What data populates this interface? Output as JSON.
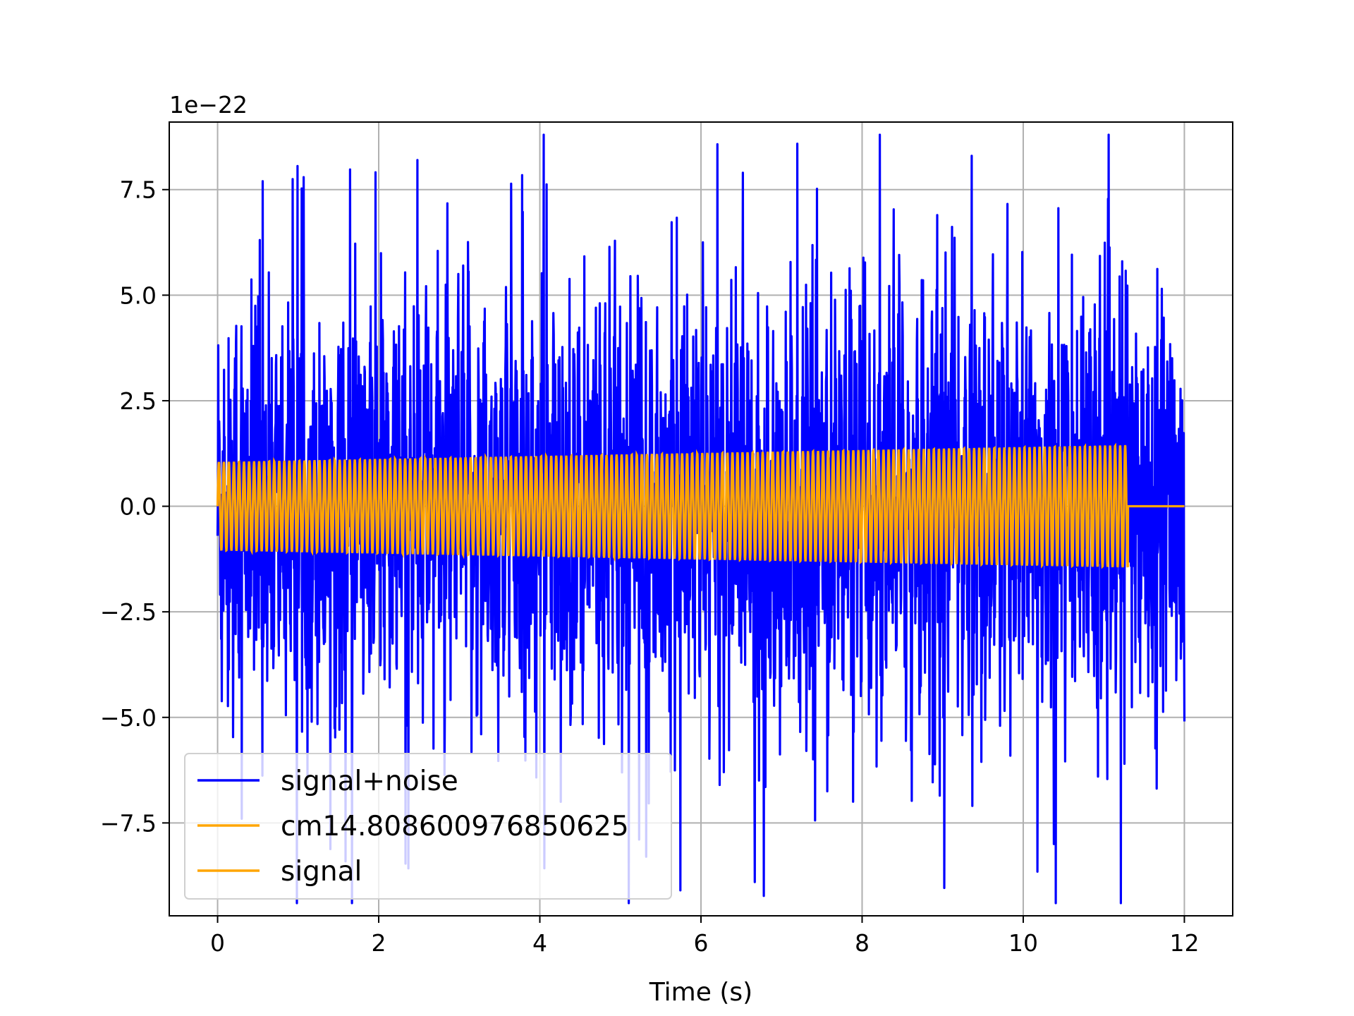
{
  "chart_data": {
    "type": "line",
    "title": "",
    "xlabel": "Time (s)",
    "ylabel": "",
    "y_scale_note": "1e−22",
    "xlim": [
      -0.6,
      12.6
    ],
    "ylim": [
      -9.7,
      9.1
    ],
    "x_ticks": [
      0,
      2,
      4,
      6,
      8,
      10,
      12
    ],
    "x_tick_labels": [
      "0",
      "2",
      "4",
      "6",
      "8",
      "10",
      "12"
    ],
    "y_ticks": [
      -7.5,
      -5.0,
      -2.5,
      0.0,
      2.5,
      5.0,
      7.5
    ],
    "y_tick_labels": [
      "−7.5",
      "−5.0",
      "−2.5",
      "0.0",
      "2.5",
      "5.0",
      "7.5"
    ],
    "grid": true,
    "legend_position": "lower-left",
    "series": [
      {
        "name": "signal+noise",
        "color": "#0000ff",
        "x_range": [
          0,
          12
        ],
        "peaks": [
          {
            "x": 0.56,
            "y": 7.7
          },
          {
            "x": 2.48,
            "y": 8.2
          },
          {
            "x": 6.52,
            "y": 7.9
          },
          {
            "x": 9.36,
            "y": 8.3
          },
          {
            "x": 0.3,
            "y": -7.4
          },
          {
            "x": 5.32,
            "y": -8.3
          },
          {
            "x": 6.67,
            "y": -8.9
          },
          {
            "x": 10.38,
            "y": -8.0
          }
        ],
        "typical_amplitude": 3.0
      },
      {
        "name": "cm14.808600976850625",
        "color": "#ffa500",
        "x_range": [
          0,
          11.3
        ],
        "amplitude_start": 1.05,
        "amplitude_end": 1.45
      },
      {
        "name": "signal",
        "color": "#ffa500",
        "x_range": [
          0,
          11.3
        ],
        "amplitude_start": 1.05,
        "amplitude_end": 1.45,
        "after_end_value": 0.0
      }
    ]
  }
}
